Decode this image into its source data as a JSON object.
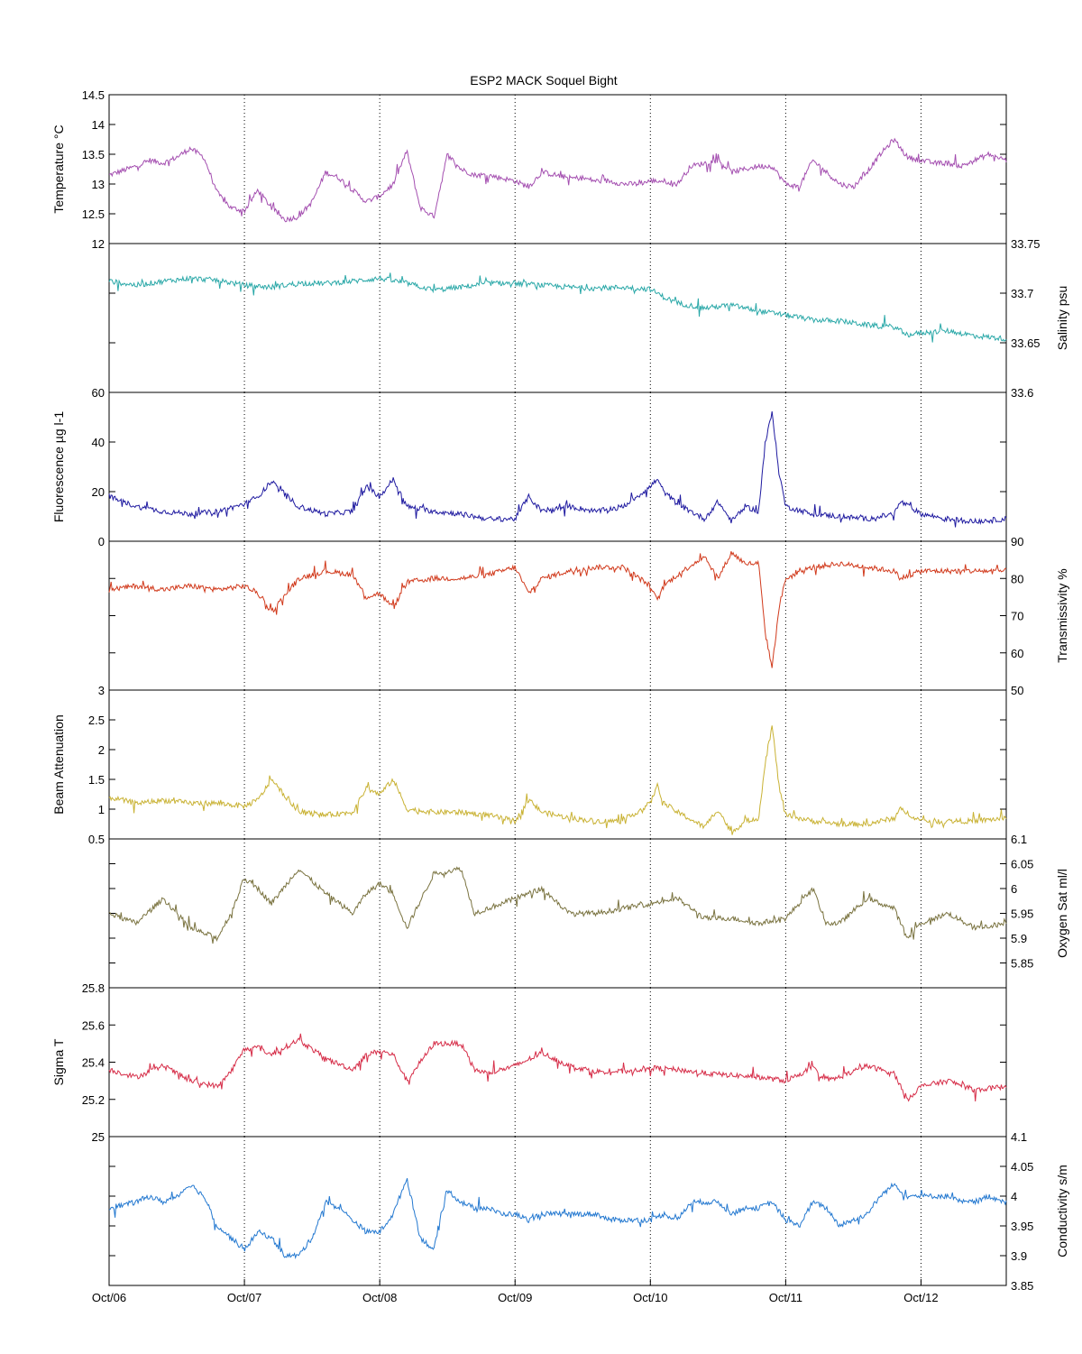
{
  "figure": {
    "title": "ESP2 MACK  Soquel Bight",
    "x_tick_labels": [
      "Oct/06",
      "Oct/07",
      "Oct/08",
      "Oct/09",
      "Oct/10",
      "Oct/11",
      "Oct/12"
    ]
  },
  "chart_data": [
    {
      "type": "line",
      "ylabel": "Temperature °C",
      "ylim": [
        12,
        14.5
      ],
      "yticks": [
        "12",
        "12.5",
        "13",
        "13.5",
        "14",
        "14.5"
      ],
      "axis_side": "left",
      "color": "#a44fb0",
      "xlim": [
        "Oct/06",
        "Oct/12 + ~0.63 day"
      ],
      "series": [
        {
          "x": [
            0,
            0.2,
            0.3,
            0.4,
            0.5,
            0.6,
            0.7,
            0.8,
            0.9,
            1.0,
            1.1,
            1.2,
            1.3,
            1.4,
            1.5,
            1.6,
            1.7,
            1.8,
            1.9,
            2.0,
            2.1,
            2.2,
            2.3,
            2.4,
            2.5,
            2.6,
            2.7,
            2.8,
            2.9,
            3.0,
            3.1,
            3.2,
            3.3,
            3.4,
            3.5,
            3.6,
            3.7,
            3.8,
            3.9,
            4.0,
            4.1,
            4.2,
            4.3,
            4.4,
            4.5,
            4.6,
            4.7,
            4.8,
            4.9,
            5.0,
            5.1,
            5.2,
            5.3,
            5.4,
            5.5,
            5.6,
            5.7,
            5.8,
            5.9,
            6.0,
            6.1,
            6.2,
            6.3,
            6.4,
            6.5,
            6.63
          ],
          "values": [
            13.15,
            13.3,
            13.4,
            13.35,
            13.45,
            13.6,
            13.45,
            12.85,
            12.6,
            12.55,
            12.9,
            12.6,
            12.4,
            12.45,
            12.7,
            13.2,
            13.1,
            12.9,
            12.7,
            12.8,
            13.0,
            13.55,
            12.6,
            12.45,
            13.5,
            13.25,
            13.15,
            13.15,
            13.1,
            13.05,
            12.95,
            13.2,
            13.15,
            13.1,
            13.1,
            13.05,
            13.05,
            13.0,
            13.0,
            13.05,
            13.05,
            13.0,
            13.3,
            13.35,
            13.4,
            13.2,
            13.25,
            13.3,
            13.3,
            13.0,
            12.95,
            13.4,
            13.2,
            13.0,
            12.95,
            13.2,
            13.5,
            13.75,
            13.45,
            13.4,
            13.35,
            13.35,
            13.3,
            13.4,
            13.5,
            13.4
          ]
        }
      ]
    },
    {
      "type": "line",
      "ylabel": "Salinity psu",
      "ylim": [
        33.6,
        33.75
      ],
      "yticks": [
        "33.6",
        "33.65",
        "33.7",
        "33.75"
      ],
      "axis_side": "right",
      "color": "#2aa8a8",
      "series": [
        {
          "x": [
            0,
            0.2,
            0.4,
            0.6,
            0.8,
            1.0,
            1.2,
            1.4,
            1.6,
            1.8,
            2.0,
            2.2,
            2.4,
            2.6,
            2.8,
            3.0,
            3.2,
            3.4,
            3.6,
            3.8,
            4.0,
            4.1,
            4.2,
            4.4,
            4.6,
            4.8,
            5.0,
            5.2,
            5.4,
            5.6,
            5.8,
            5.9,
            6.0,
            6.2,
            6.4,
            6.63
          ],
          "values": [
            33.712,
            33.708,
            33.712,
            33.715,
            33.713,
            33.708,
            33.706,
            33.71,
            33.71,
            33.712,
            33.715,
            33.71,
            33.703,
            33.706,
            33.71,
            33.71,
            33.708,
            33.706,
            33.705,
            33.706,
            33.704,
            33.696,
            33.69,
            33.685,
            33.688,
            33.682,
            33.678,
            33.673,
            33.672,
            33.668,
            33.666,
            33.658,
            33.66,
            33.662,
            33.657,
            33.654
          ]
        }
      ]
    },
    {
      "type": "line",
      "ylabel": "Fluorescence µg l-1",
      "ylim": [
        0,
        60
      ],
      "yticks": [
        "0",
        "20",
        "40",
        "60"
      ],
      "axis_side": "left",
      "color": "#1f1aa0",
      "series": [
        {
          "x": [
            0,
            0.2,
            0.4,
            0.6,
            0.8,
            1.0,
            1.1,
            1.2,
            1.4,
            1.6,
            1.8,
            1.9,
            2.0,
            2.1,
            2.2,
            2.4,
            2.6,
            2.8,
            3.0,
            3.1,
            3.2,
            3.4,
            3.6,
            3.8,
            4.0,
            4.05,
            4.1,
            4.2,
            4.4,
            4.5,
            4.6,
            4.7,
            4.8,
            4.85,
            4.9,
            4.95,
            5.0,
            5.2,
            5.4,
            5.6,
            5.8,
            5.85,
            6.0,
            6.2,
            6.4,
            6.63
          ],
          "values": [
            18,
            14,
            12,
            11,
            12,
            15,
            18,
            24,
            14,
            11,
            12,
            22,
            18,
            25,
            14,
            12,
            11,
            9,
            9,
            18,
            12,
            14,
            12,
            14,
            22,
            25,
            20,
            15,
            9,
            16,
            8,
            14,
            12,
            40,
            52,
            28,
            14,
            11,
            10,
            9,
            11,
            16,
            11,
            9,
            8,
            9
          ]
        }
      ]
    },
    {
      "type": "line",
      "ylabel": "Transmissivity %",
      "ylim": [
        50,
        90
      ],
      "yticks": [
        "50",
        "60",
        "70",
        "80",
        "90"
      ],
      "axis_side": "right",
      "color": "#d13a1c",
      "series": [
        {
          "x": [
            0,
            0.2,
            0.4,
            0.6,
            0.8,
            1.0,
            1.1,
            1.2,
            1.4,
            1.6,
            1.8,
            1.9,
            2.0,
            2.1,
            2.2,
            2.4,
            2.6,
            2.8,
            3.0,
            3.1,
            3.2,
            3.4,
            3.6,
            3.8,
            4.0,
            4.05,
            4.1,
            4.2,
            4.4,
            4.5,
            4.6,
            4.7,
            4.8,
            4.85,
            4.9,
            4.95,
            5.0,
            5.2,
            5.4,
            5.6,
            5.8,
            5.85,
            6.0,
            6.2,
            6.4,
            6.63
          ],
          "values": [
            77,
            78,
            77,
            78,
            77,
            78,
            76,
            71,
            80,
            82,
            81,
            75,
            76,
            72,
            79,
            80,
            80,
            81,
            83,
            76,
            80,
            82,
            83,
            83,
            78,
            74,
            78,
            81,
            86,
            80,
            87,
            84,
            84,
            65,
            56,
            72,
            80,
            83,
            84,
            83,
            82,
            80,
            82,
            82,
            82,
            82
          ]
        }
      ]
    },
    {
      "type": "line",
      "ylabel": "Beam Attenuation",
      "ylim": [
        0.5,
        3
      ],
      "yticks": [
        "0.5",
        "1",
        "1.5",
        "2",
        "2.5",
        "3"
      ],
      "axis_side": "left",
      "color": "#c9b234",
      "series": [
        {
          "x": [
            0,
            0.2,
            0.4,
            0.6,
            0.8,
            1.0,
            1.1,
            1.2,
            1.4,
            1.6,
            1.8,
            1.9,
            2.0,
            2.1,
            2.2,
            2.4,
            2.6,
            2.8,
            3.0,
            3.1,
            3.2,
            3.4,
            3.6,
            3.8,
            4.0,
            4.05,
            4.1,
            4.2,
            4.4,
            4.5,
            4.6,
            4.7,
            4.8,
            4.85,
            4.9,
            4.95,
            5.0,
            5.2,
            5.4,
            5.6,
            5.8,
            5.85,
            6.0,
            6.2,
            6.4,
            6.63
          ],
          "values": [
            1.2,
            1.1,
            1.15,
            1.1,
            1.1,
            1.05,
            1.15,
            1.5,
            0.95,
            0.9,
            0.95,
            1.35,
            1.25,
            1.5,
            1.0,
            0.95,
            0.95,
            0.9,
            0.8,
            1.15,
            0.95,
            0.85,
            0.8,
            0.8,
            1.1,
            1.4,
            1.1,
            0.95,
            0.7,
            1.0,
            0.6,
            0.8,
            0.85,
            1.8,
            2.4,
            1.4,
            0.9,
            0.8,
            0.75,
            0.75,
            0.85,
            1.0,
            0.8,
            0.8,
            0.8,
            0.85
          ]
        }
      ]
    },
    {
      "type": "line",
      "ylabel": "Oxygen Sat ml/l",
      "ylim": [
        5.8,
        6.1
      ],
      "yticks": [
        "5.85",
        "5.9",
        "5.95",
        "6",
        "6.05",
        "6.1"
      ],
      "axis_side": "right",
      "color": "#7a7340",
      "series": [
        {
          "x": [
            0,
            0.2,
            0.4,
            0.6,
            0.8,
            0.9,
            1.0,
            1.1,
            1.2,
            1.4,
            1.6,
            1.8,
            1.9,
            2.0,
            2.1,
            2.2,
            2.4,
            2.6,
            2.7,
            2.8,
            3.0,
            3.2,
            3.4,
            3.6,
            3.8,
            4.0,
            4.2,
            4.4,
            4.6,
            4.8,
            5.0,
            5.2,
            5.3,
            5.4,
            5.6,
            5.8,
            5.9,
            6.0,
            6.2,
            6.4,
            6.63
          ],
          "values": [
            5.95,
            5.93,
            5.98,
            5.92,
            5.9,
            5.95,
            6.02,
            6.0,
            5.97,
            6.04,
            5.99,
            5.95,
            5.99,
            6.01,
            5.99,
            5.92,
            6.03,
            6.04,
            5.95,
            5.96,
            5.98,
            6.0,
            5.95,
            5.95,
            5.96,
            5.97,
            5.98,
            5.94,
            5.94,
            5.93,
            5.94,
            6.0,
            5.93,
            5.93,
            5.98,
            5.96,
            5.9,
            5.93,
            5.95,
            5.92,
            5.93
          ]
        }
      ]
    },
    {
      "type": "line",
      "ylabel": "Sigma T",
      "ylim": [
        25,
        25.8
      ],
      "yticks": [
        "25",
        "25.2",
        "25.4",
        "25.6",
        "25.8"
      ],
      "axis_side": "left",
      "color": "#d62d48",
      "series": [
        {
          "x": [
            0,
            0.2,
            0.4,
            0.6,
            0.8,
            0.9,
            1.0,
            1.1,
            1.2,
            1.4,
            1.6,
            1.8,
            1.9,
            2.0,
            2.1,
            2.2,
            2.4,
            2.6,
            2.7,
            2.8,
            3.0,
            3.2,
            3.4,
            3.6,
            3.8,
            4.0,
            4.2,
            4.4,
            4.6,
            4.8,
            5.0,
            5.2,
            5.3,
            5.4,
            5.6,
            5.8,
            5.9,
            6.0,
            6.2,
            6.4,
            6.63
          ],
          "values": [
            25.36,
            25.32,
            25.38,
            25.3,
            25.27,
            25.35,
            25.47,
            25.48,
            25.44,
            25.52,
            25.42,
            25.36,
            25.44,
            25.46,
            25.44,
            25.3,
            25.5,
            25.5,
            25.36,
            25.34,
            25.38,
            25.45,
            25.38,
            25.35,
            25.35,
            25.37,
            25.36,
            25.34,
            25.33,
            25.32,
            25.3,
            25.37,
            25.3,
            25.32,
            25.38,
            25.34,
            25.2,
            25.27,
            25.3,
            25.25,
            25.27
          ]
        }
      ]
    },
    {
      "type": "line",
      "ylabel": "Conductivity s/m",
      "ylim": [
        3.85,
        4.1
      ],
      "yticks": [
        "3.85",
        "3.9",
        "3.95",
        "4",
        "4.05",
        "4.1"
      ],
      "axis_side": "right",
      "color": "#2378d0",
      "series": [
        {
          "x": [
            0,
            0.2,
            0.3,
            0.4,
            0.5,
            0.6,
            0.7,
            0.8,
            0.9,
            1.0,
            1.1,
            1.2,
            1.3,
            1.4,
            1.5,
            1.6,
            1.7,
            1.8,
            1.9,
            2.0,
            2.1,
            2.2,
            2.3,
            2.4,
            2.5,
            2.6,
            2.7,
            2.8,
            2.9,
            3.0,
            3.1,
            3.2,
            3.3,
            3.4,
            3.5,
            3.6,
            3.7,
            3.8,
            3.9,
            4.0,
            4.1,
            4.2,
            4.3,
            4.4,
            4.5,
            4.6,
            4.7,
            4.8,
            4.9,
            5.0,
            5.1,
            5.2,
            5.3,
            5.4,
            5.6,
            5.7,
            5.8,
            5.9,
            6.0,
            6.1,
            6.2,
            6.3,
            6.4,
            6.5,
            6.63
          ],
          "values": [
            3.98,
            3.99,
            4.0,
            3.99,
            4.0,
            4.02,
            4.0,
            3.95,
            3.93,
            3.91,
            3.94,
            3.93,
            3.9,
            3.9,
            3.93,
            3.99,
            3.98,
            3.96,
            3.94,
            3.94,
            3.97,
            4.03,
            3.93,
            3.91,
            4.01,
            3.99,
            3.98,
            3.98,
            3.97,
            3.97,
            3.96,
            3.97,
            3.97,
            3.97,
            3.97,
            3.97,
            3.96,
            3.96,
            3.96,
            3.96,
            3.97,
            3.96,
            3.99,
            3.99,
            3.99,
            3.97,
            3.98,
            3.98,
            3.99,
            3.96,
            3.95,
            3.99,
            3.98,
            3.95,
            3.97,
            4.0,
            4.02,
            4.0,
            4.0,
            4.0,
            4.0,
            3.99,
            3.99,
            4.0,
            3.99
          ]
        }
      ]
    }
  ]
}
